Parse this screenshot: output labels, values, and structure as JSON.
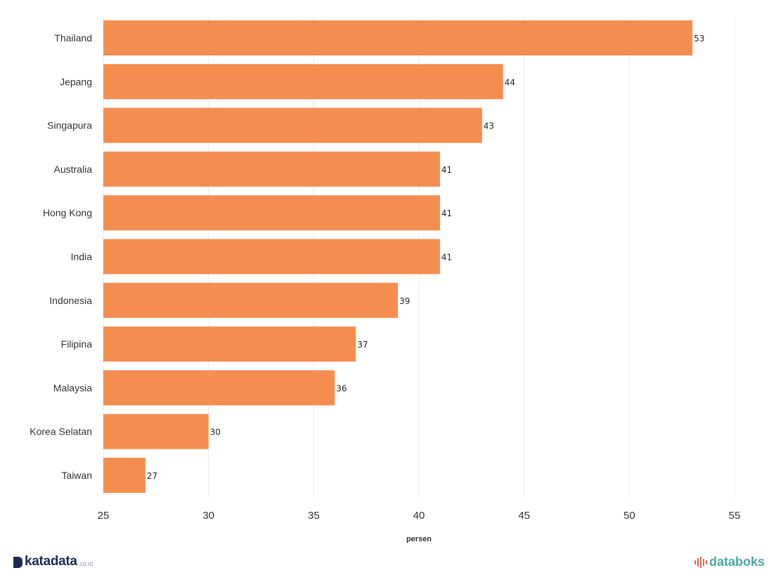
{
  "chart_data": {
    "type": "bar",
    "orientation": "horizontal",
    "categories": [
      "Thailand",
      "Jepang",
      "Singapura",
      "Australia",
      "Hong Kong",
      "India",
      "Indonesia",
      "Filipina",
      "Malaysia",
      "Korea Selatan",
      "Taiwan"
    ],
    "values": [
      53,
      44,
      43,
      41,
      41,
      41,
      39,
      37,
      36,
      30,
      27
    ],
    "xlabel": "persen",
    "ylabel": "",
    "xlim": [
      25,
      55
    ],
    "xticks": [
      25,
      30,
      35,
      40,
      45,
      50,
      55
    ],
    "grid": "vertical",
    "bar_color": "#F48D50",
    "data_labels": true
  },
  "branding": {
    "left_logo": "katadata",
    "left_logo_suffix": ".co.id",
    "right_logo": "databoks"
  }
}
